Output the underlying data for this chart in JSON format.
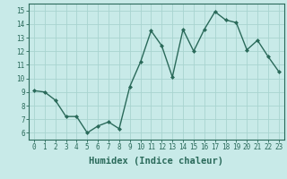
{
  "x": [
    0,
    1,
    2,
    3,
    4,
    5,
    6,
    7,
    8,
    9,
    10,
    11,
    12,
    13,
    14,
    15,
    16,
    17,
    18,
    19,
    20,
    21,
    22,
    23
  ],
  "y": [
    9.1,
    9.0,
    8.4,
    7.2,
    7.2,
    6.0,
    6.5,
    6.8,
    6.3,
    9.4,
    11.2,
    13.5,
    12.4,
    10.1,
    13.6,
    12.0,
    13.6,
    14.9,
    14.3,
    14.1,
    12.1,
    12.8,
    11.6,
    10.5
  ],
  "line_color": "#2a6a5a",
  "marker": "D",
  "marker_size": 2.0,
  "bg_color": "#c8eae8",
  "grid_color": "#a8d4d0",
  "xlabel": "Humidex (Indice chaleur)",
  "xlim": [
    -0.5,
    23.5
  ],
  "ylim": [
    5.5,
    15.5
  ],
  "yticks": [
    6,
    7,
    8,
    9,
    10,
    11,
    12,
    13,
    14,
    15
  ],
  "xticks": [
    0,
    1,
    2,
    3,
    4,
    5,
    6,
    7,
    8,
    9,
    10,
    11,
    12,
    13,
    14,
    15,
    16,
    17,
    18,
    19,
    20,
    21,
    22,
    23
  ],
  "xtick_labels": [
    "0",
    "1",
    "2",
    "3",
    "4",
    "5",
    "6",
    "7",
    "8",
    "9",
    "10",
    "11",
    "12",
    "13",
    "14",
    "15",
    "16",
    "17",
    "18",
    "19",
    "20",
    "21",
    "22",
    "23"
  ],
  "axis_color": "#2a6a5a",
  "tick_color": "#2a6a5a",
  "label_color": "#2a6a5a",
  "font_size_tick": 5.5,
  "font_size_label": 7.5,
  "linewidth": 1.0
}
